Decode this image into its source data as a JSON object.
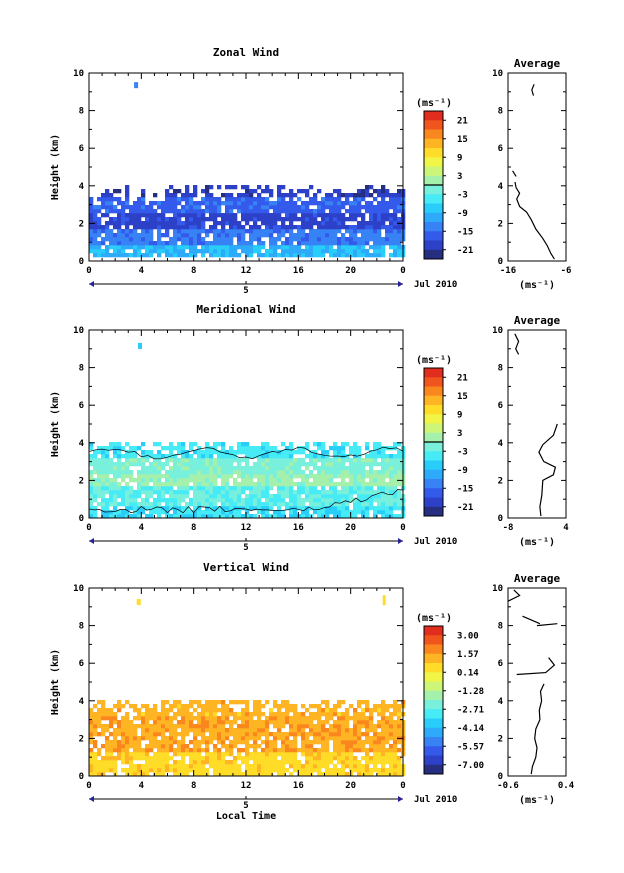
{
  "chart_data": [
    {
      "type": "heatmap",
      "title": "Zonal Wind",
      "ylabel": "Height (km)",
      "xlabel": "",
      "xlim": [
        0,
        24
      ],
      "ylim": [
        0,
        10
      ],
      "x_ticks": [
        "0",
        "4",
        "8",
        "12",
        "16",
        "20",
        "0"
      ],
      "y_ticks": [
        "0",
        "2",
        "4",
        "6",
        "8",
        "10"
      ],
      "date_label": "5",
      "month_label": "Jul 2010",
      "colorbar": {
        "unit_label": "(ms⁻¹)",
        "ticks": [
          "21",
          "15",
          "9",
          "3",
          "-3",
          "-9",
          "-15",
          "-21"
        ],
        "vmin": -24,
        "vmax": 24
      },
      "bands": [
        {
          "y_from": 0.3,
          "y_to": 0.9,
          "value": -9
        },
        {
          "y_from": 0.9,
          "y_to": 1.7,
          "value": -14
        },
        {
          "y_from": 1.7,
          "y_to": 2.6,
          "value": -19
        },
        {
          "y_from": 2.6,
          "y_to": 3.4,
          "value": -16
        },
        {
          "y_from": 3.4,
          "y_to": 4.0,
          "value": -20
        }
      ],
      "top_profile": [
        [
          0,
          3.4
        ],
        [
          2,
          3.8
        ],
        [
          4,
          3.8
        ],
        [
          6,
          3.9
        ],
        [
          8,
          3.8
        ],
        [
          10,
          4.1
        ],
        [
          12,
          4.0
        ],
        [
          14,
          3.9
        ],
        [
          16,
          3.8
        ],
        [
          18,
          4.0
        ],
        [
          20,
          3.7
        ],
        [
          22,
          4.0
        ],
        [
          24,
          3.8
        ]
      ],
      "blob": {
        "x": 3.6,
        "y": 9.3,
        "value": -14
      },
      "average": {
        "xlim": [
          -16,
          -6
        ],
        "x_ticks": [
          "-16",
          "-6"
        ],
        "xlabel": "(ms⁻¹)",
        "title": "Average",
        "profile": [
          [
            -14.8,
            4.2
          ],
          [
            -14.6,
            3.9
          ],
          [
            -14.0,
            3.6
          ],
          [
            -14.5,
            3.3
          ],
          [
            -14.0,
            2.9
          ],
          [
            -12.8,
            2.6
          ],
          [
            -12.0,
            2.2
          ],
          [
            -11.2,
            1.7
          ],
          [
            -10.0,
            1.2
          ],
          [
            -9.2,
            0.8
          ],
          [
            -8.6,
            0.4
          ],
          [
            -8.0,
            0.1
          ]
        ],
        "extra_segments": [
          [
            [
              -11.5,
              9.4
            ],
            [
              -11.9,
              9.1
            ],
            [
              -11.6,
              8.8
            ]
          ],
          [
            [
              -15.2,
              4.8
            ],
            [
              -14.6,
              4.5
            ]
          ]
        ]
      }
    },
    {
      "type": "heatmap",
      "title": "Meridional Wind",
      "ylabel": "Height (km)",
      "xlabel": "",
      "xlim": [
        0,
        24
      ],
      "ylim": [
        0,
        10
      ],
      "x_ticks": [
        "0",
        "4",
        "8",
        "12",
        "16",
        "20",
        "0"
      ],
      "y_ticks": [
        "0",
        "2",
        "4",
        "6",
        "8",
        "10"
      ],
      "date_label": "5",
      "month_label": "Jul 2010",
      "colorbar": {
        "unit_label": "(ms⁻¹)",
        "ticks": [
          "21",
          "15",
          "9",
          "3",
          "-3",
          "-9",
          "-15",
          "-21"
        ],
        "vmin": -24,
        "vmax": 24
      },
      "bands": [
        {
          "y_from": 0.0,
          "y_to": 0.6,
          "value": -6
        },
        {
          "y_from": 0.6,
          "y_to": 1.6,
          "value": -3
        },
        {
          "y_from": 1.6,
          "y_to": 2.4,
          "value": 1
        },
        {
          "y_from": 2.4,
          "y_to": 3.2,
          "value": -1
        },
        {
          "y_from": 3.2,
          "y_to": 4.1,
          "value": -5
        }
      ],
      "top_profile": [
        [
          0,
          4.1
        ],
        [
          2,
          4.0
        ],
        [
          4,
          3.9
        ],
        [
          6,
          4.0
        ],
        [
          8,
          4.1
        ],
        [
          10,
          4.2
        ],
        [
          12,
          4.1
        ],
        [
          14,
          4.0
        ],
        [
          16,
          4.0
        ],
        [
          18,
          4.2
        ],
        [
          20,
          4.1
        ],
        [
          22,
          4.3
        ],
        [
          24,
          4.1
        ]
      ],
      "blob": {
        "x": 3.9,
        "y": 9.1,
        "value": -9
      },
      "average": {
        "xlim": [
          -8,
          4
        ],
        "x_ticks": [
          "-8",
          "4"
        ],
        "xlabel": "(ms⁻¹)",
        "title": "Average",
        "profile": [
          [
            2.2,
            5.0
          ],
          [
            1.4,
            4.4
          ],
          [
            -0.8,
            3.9
          ],
          [
            -1.6,
            3.5
          ],
          [
            -0.6,
            3.0
          ],
          [
            1.8,
            2.7
          ],
          [
            1.4,
            2.3
          ],
          [
            -0.8,
            2.0
          ],
          [
            -1.0,
            1.2
          ],
          [
            -1.4,
            0.6
          ],
          [
            -1.2,
            0.1
          ]
        ],
        "extra_segments": [
          [
            [
              -6.6,
              9.8
            ],
            [
              -5.8,
              9.4
            ],
            [
              -6.4,
              9.0
            ],
            [
              -5.8,
              8.7
            ]
          ]
        ]
      }
    },
    {
      "type": "heatmap",
      "title": "Vertical Wind",
      "ylabel": "Height (km)",
      "xlabel": "Local Time",
      "xlim": [
        0,
        24
      ],
      "ylim": [
        0,
        10
      ],
      "x_ticks": [
        "0",
        "4",
        "8",
        "12",
        "16",
        "20",
        "0"
      ],
      "y_ticks": [
        "0",
        "2",
        "4",
        "6",
        "8",
        "10"
      ],
      "date_label": "5",
      "month_label": "Jul 2010",
      "colorbar": {
        "unit_label": "(ms⁻¹)",
        "ticks": [
          "3.00",
          "1.57",
          "0.14",
          "-1.28",
          "-2.71",
          "-4.14",
          "-5.57",
          "-7.00"
        ],
        "vmin": -7.7,
        "vmax": 3.7
      },
      "bands": [
        {
          "y_from": 0.0,
          "y_to": 1.3,
          "value": 0.6
        },
        {
          "y_from": 1.3,
          "y_to": 3.2,
          "value": 1.4
        },
        {
          "y_from": 3.2,
          "y_to": 4.0,
          "value": 1.2
        }
      ],
      "top_profile": [
        [
          0,
          4.0
        ],
        [
          2,
          3.9
        ],
        [
          4,
          3.8
        ],
        [
          6,
          3.9
        ],
        [
          8,
          4.1
        ],
        [
          10,
          4.2
        ],
        [
          12,
          4.0
        ],
        [
          14,
          3.9
        ],
        [
          16,
          3.8
        ],
        [
          18,
          4.0
        ],
        [
          20,
          3.9
        ],
        [
          22,
          4.0
        ],
        [
          24,
          4.0
        ]
      ],
      "blob": {
        "x": 3.8,
        "y": 9.2,
        "value": 0.4
      },
      "blob2": {
        "x": 22.6,
        "y": 9.3,
        "value": 0.4
      },
      "average": {
        "xlim": [
          -0.6,
          0.4
        ],
        "x_ticks": [
          "-0.6",
          "0.4"
        ],
        "xlabel": "(ms⁻¹)",
        "title": "Average",
        "profile": [
          [
            0.02,
            4.9
          ],
          [
            -0.04,
            4.5
          ],
          [
            -0.02,
            4.0
          ],
          [
            -0.06,
            3.5
          ],
          [
            -0.05,
            3.0
          ],
          [
            -0.12,
            2.5
          ],
          [
            -0.14,
            2.0
          ],
          [
            -0.1,
            1.5
          ],
          [
            -0.12,
            1.0
          ],
          [
            -0.18,
            0.5
          ],
          [
            -0.2,
            0.1
          ]
        ],
        "extra_segments": [
          [
            [
              -0.5,
              9.9
            ],
            [
              -0.4,
              9.6
            ],
            [
              -0.6,
              9.3
            ]
          ],
          [
            [
              -0.35,
              8.5
            ],
            [
              -0.05,
              8.1
            ]
          ],
          [
            [
              -0.1,
              8.0
            ],
            [
              0.25,
              8.1
            ]
          ],
          [
            [
              -0.45,
              5.4
            ],
            [
              0.05,
              5.5
            ],
            [
              0.2,
              5.9
            ],
            [
              0.1,
              6.3
            ]
          ]
        ]
      }
    }
  ]
}
